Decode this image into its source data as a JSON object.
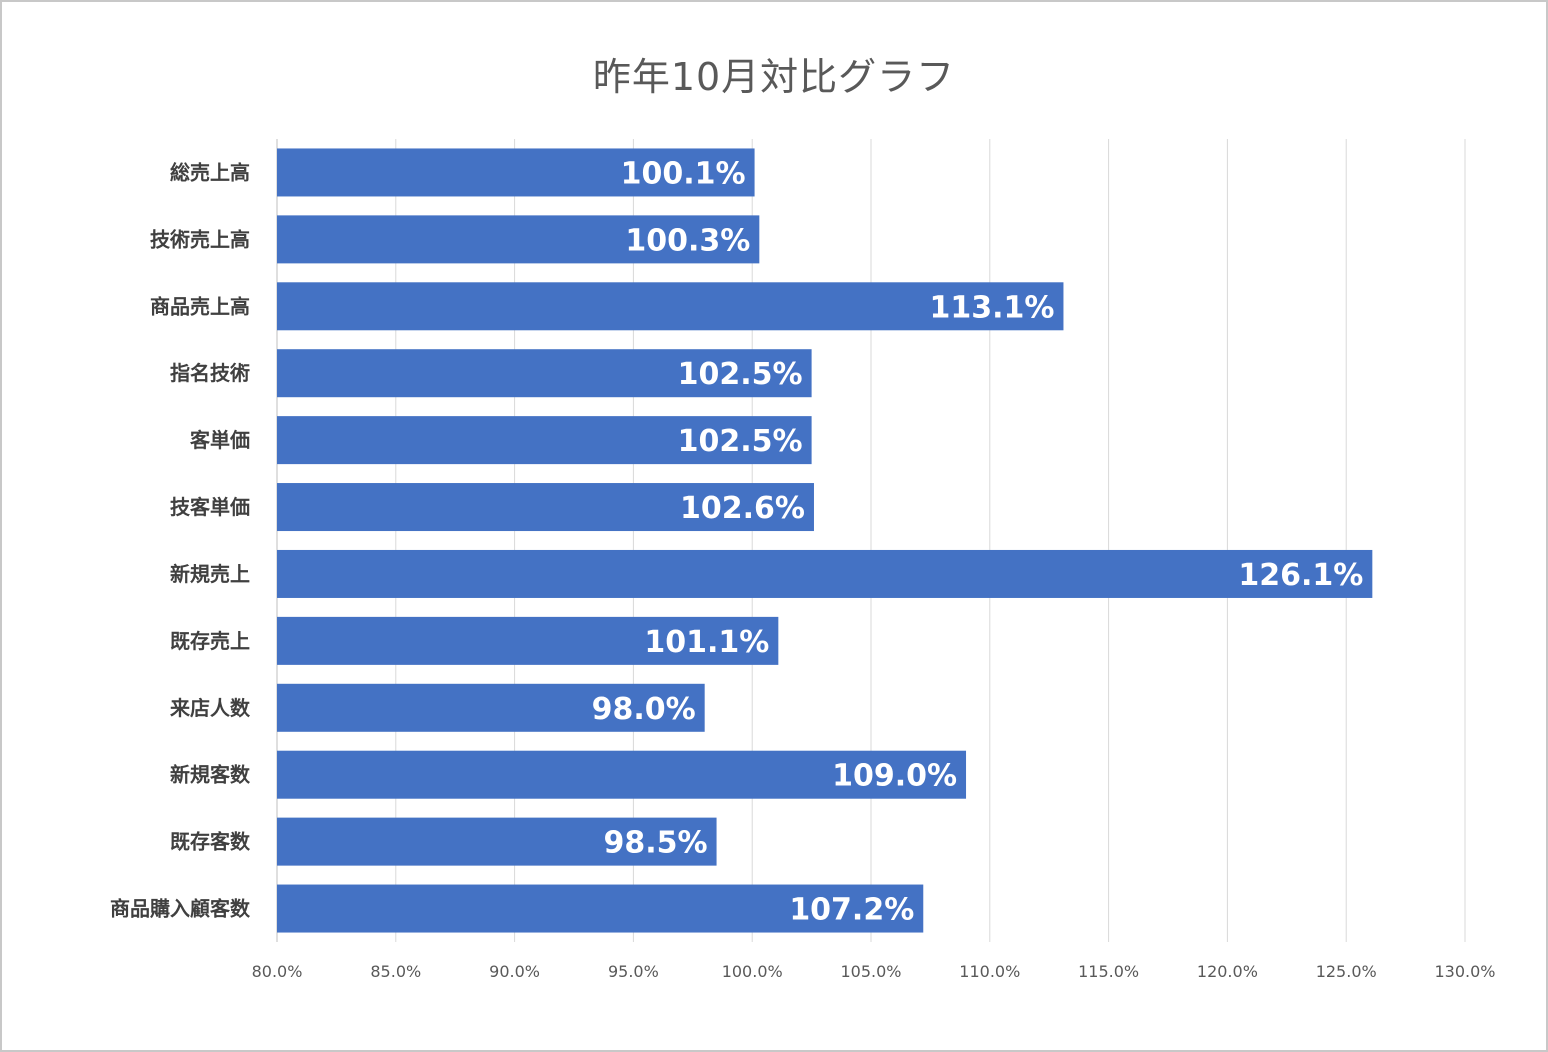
{
  "chart_data": {
    "type": "bar",
    "orientation": "horizontal",
    "title": "昨年10月対比グラフ",
    "categories": [
      "総売上高",
      "技術売上高",
      "商品売上高",
      "指名技術",
      "客単価",
      "技客単価",
      "新規売上",
      "既存売上",
      "来店人数",
      "新規客数",
      "既存客数",
      "商品購入顧客数"
    ],
    "values": [
      100.1,
      100.3,
      113.1,
      102.5,
      102.5,
      102.6,
      126.1,
      101.1,
      98.0,
      109.0,
      98.5,
      107.2
    ],
    "data_labels": [
      "100.1%",
      "100.3%",
      "113.1%",
      "102.5%",
      "102.5%",
      "102.6%",
      "126.1%",
      "101.1%",
      "98.0%",
      "109.0%",
      "98.5%",
      "107.2%"
    ],
    "xlim": [
      80,
      130
    ],
    "xticks": [
      80,
      85,
      90,
      95,
      100,
      105,
      110,
      115,
      120,
      125,
      130
    ],
    "xtick_labels": [
      "80.0%",
      "85.0%",
      "90.0%",
      "95.0%",
      "100.0%",
      "105.0%",
      "110.0%",
      "115.0%",
      "120.0%",
      "125.0%",
      "130.0%"
    ],
    "xlabel": "",
    "ylabel": "",
    "grid": "vertical",
    "legend": "none",
    "bar_color": "#4472C4"
  }
}
